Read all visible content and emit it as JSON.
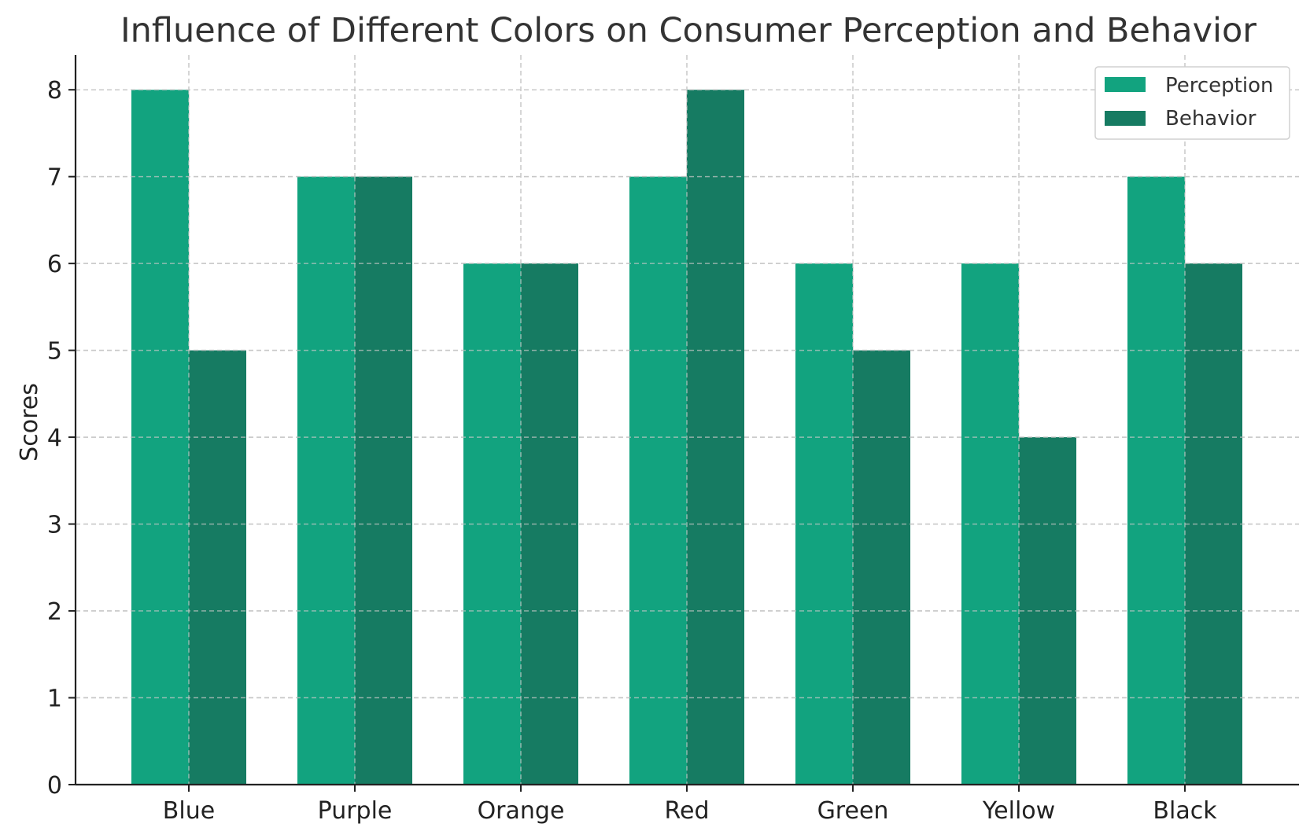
{
  "chart_data": {
    "type": "bar",
    "title": "Influence of Different Colors on Consumer Perception and Behavior",
    "xlabel": "",
    "ylabel": "Scores",
    "categories": [
      "Blue",
      "Purple",
      "Orange",
      "Red",
      "Green",
      "Yellow",
      "Black"
    ],
    "series": [
      {
        "name": "Perception",
        "color": "#12a37f",
        "values": [
          8,
          7,
          6,
          7,
          6,
          6,
          7
        ]
      },
      {
        "name": "Behavior",
        "color": "#167b62",
        "values": [
          5,
          7,
          6,
          8,
          5,
          4,
          6
        ]
      }
    ],
    "ylim": [
      0,
      8.4
    ],
    "yticks": [
      0,
      1,
      2,
      3,
      4,
      5,
      6,
      7,
      8
    ],
    "grid": true,
    "legend_position": "top-right"
  }
}
